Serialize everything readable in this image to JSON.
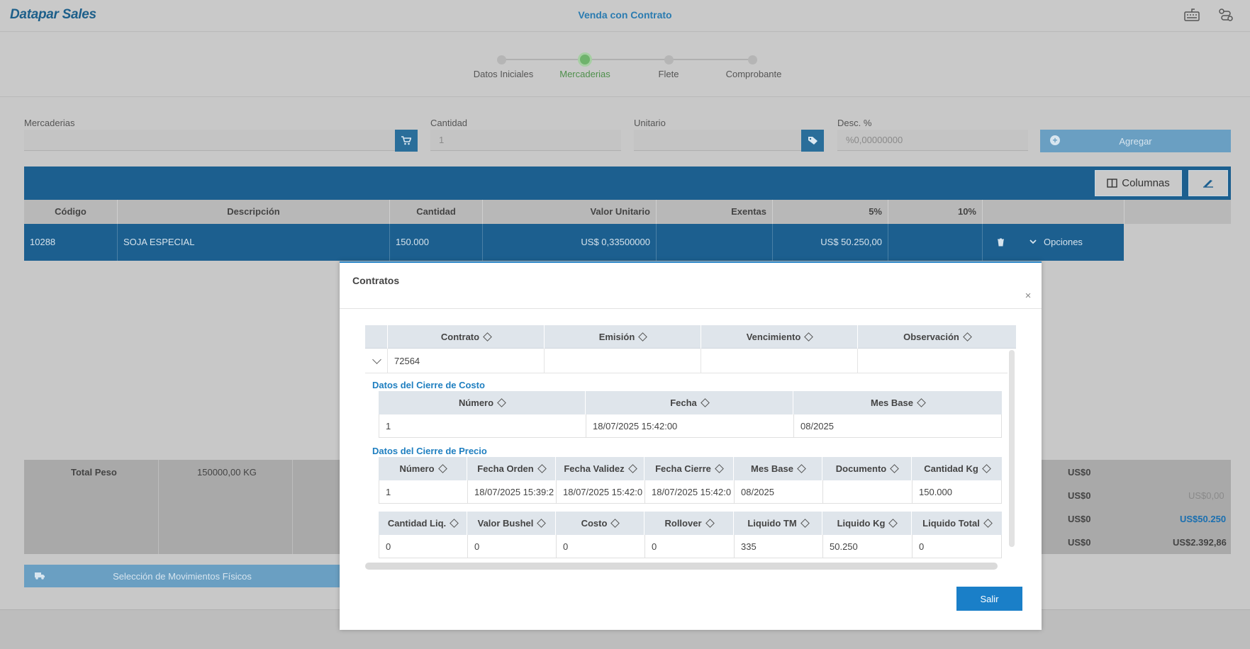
{
  "header": {
    "logo_part1": "Datapar",
    "logo_part2": "Sales",
    "title": "Venda con Contrato",
    "icons": [
      "keyboard-icon",
      "route-icon"
    ]
  },
  "stepper": {
    "steps": [
      {
        "label": "Datos Iniciales",
        "active": false
      },
      {
        "label": "Mercaderias",
        "active": true
      },
      {
        "label": "Flete",
        "active": false
      },
      {
        "label": "Comprobante",
        "active": false
      }
    ]
  },
  "form": {
    "mercaderias_label": "Mercaderias",
    "cantidad_label": "Cantidad",
    "cantidad_placeholder": "1",
    "unitario_label": "Unitario",
    "desc_label": "Desc. %",
    "desc_placeholder": "%0,00000000",
    "agregar_label": "Agregar"
  },
  "grid": {
    "columnas_label": "Columnas",
    "headers": [
      "Código",
      "Descripción",
      "Cantidad",
      "Valor Unitario",
      "Exentas",
      "5%",
      "10%"
    ],
    "row": {
      "codigo": "10288",
      "descripcion": "SOJA ESPECIAL",
      "cantidad": "150.000",
      "valor_unitario": "US$ 0,33500000",
      "exentas": "",
      "cinco": "US$ 50.250,00",
      "diez": "",
      "opciones_label": "Opciones"
    }
  },
  "totals": {
    "total_peso_label": "Total Peso",
    "total_peso_value": "150000,00 KG",
    "right_col1": [
      "US$0",
      "US$0",
      "US$0",
      "US$0"
    ],
    "right_col2": [
      "US$0,00",
      "US$50.250",
      "US$2.392,86"
    ]
  },
  "movimientos_label": "Selección de Movimientos Físicos",
  "modal": {
    "title": "Contratos",
    "close_glyph": "×",
    "headers": [
      "Contrato",
      "Emisión",
      "Vencimiento",
      "Observación"
    ],
    "row": {
      "contrato": "72564",
      "emision": "",
      "vencimiento": "",
      "observacion": ""
    },
    "costo": {
      "title": "Datos del Cierre de Costo",
      "headers": [
        "Número",
        "Fecha",
        "Mes Base"
      ],
      "row": [
        "1",
        "18/07/2025 15:42:00",
        "08/2025"
      ]
    },
    "precio": {
      "title": "Datos del Cierre de Precio",
      "headers": [
        "Número",
        "Fecha Orden",
        "Fecha Validez",
        "Fecha Cierre",
        "Mes Base",
        "Documento",
        "Cantidad Kg"
      ],
      "row": [
        "1",
        "18/07/2025 15:39:2",
        "18/07/2025 15:42:0",
        "18/07/2025 15:42:0",
        "08/2025",
        "",
        "150.000"
      ],
      "headers2": [
        "Cantidad Liq.",
        "Valor Bushel",
        "Costo",
        "Rollover",
        "Liquido TM",
        "Liquido Kg",
        "Liquido Total"
      ],
      "row2": [
        "0",
        "0",
        "0",
        "0",
        "335",
        "50.250",
        "0"
      ]
    },
    "salir_label": "Salir"
  },
  "colors": {
    "primary": "#1a7fc8",
    "section_title": "#1f7fc0",
    "step_active": "#6fb36c"
  }
}
